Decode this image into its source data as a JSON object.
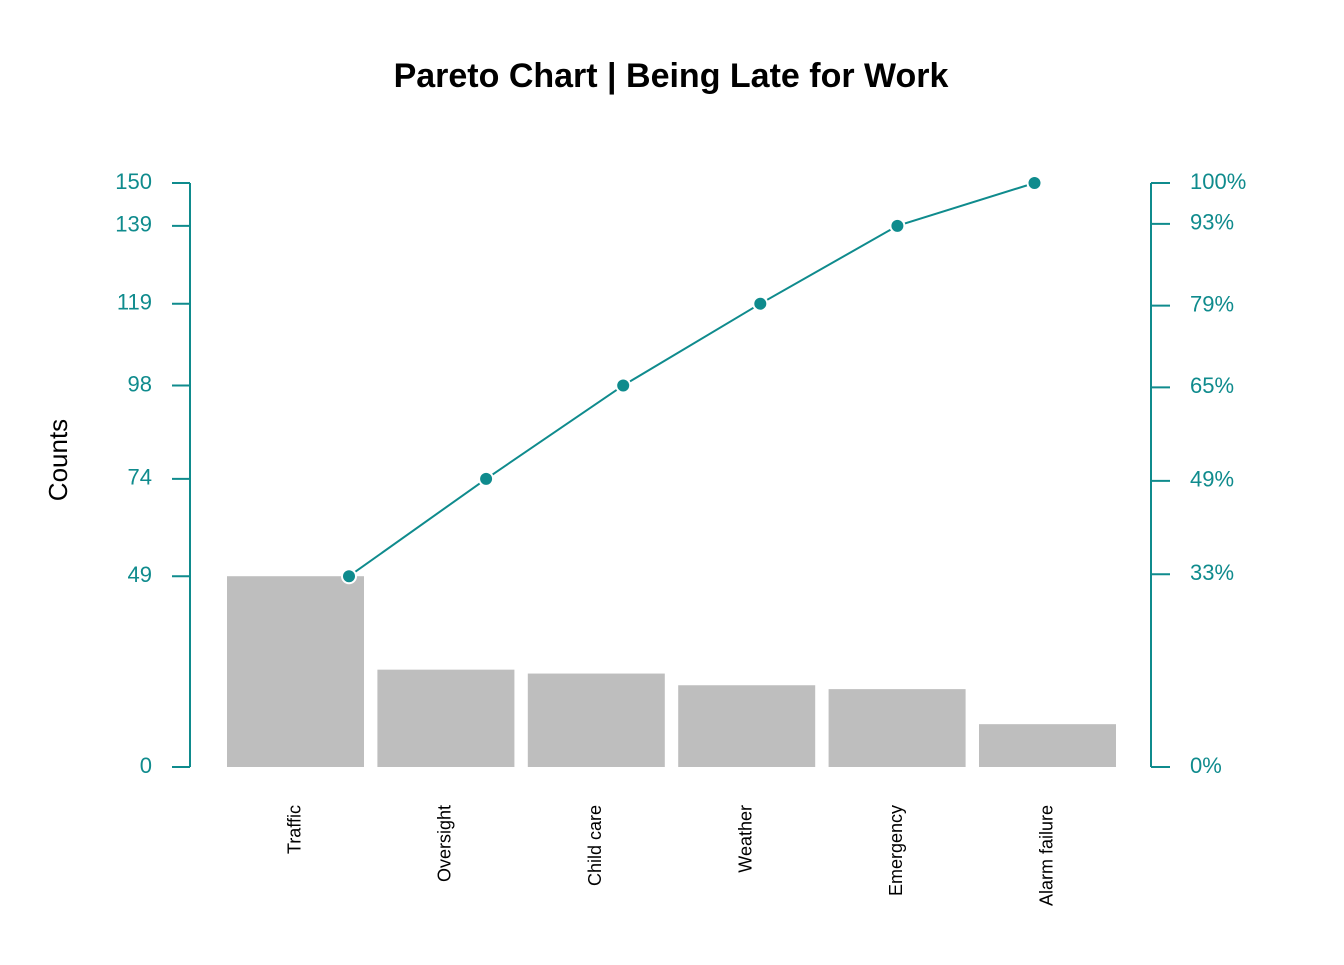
{
  "chart_data": {
    "type": "pareto",
    "title": "Pareto Chart | Being Late for Work",
    "ylabel": "Counts",
    "categories": [
      "Traffic",
      "Oversight",
      "Child care",
      "Weather",
      "Emergency",
      "Alarm failure"
    ],
    "values": [
      49,
      25,
      24,
      21,
      20,
      11
    ],
    "color": "#bebebe",
    "line_values": [
      49,
      74,
      98,
      119,
      139,
      150
    ],
    "line_color": "#0f8b8d",
    "ylim": [
      0,
      150
    ],
    "yticks": [
      0,
      49,
      74,
      98,
      119,
      139,
      150
    ],
    "y2lim": [
      0,
      100
    ],
    "y2ticks": [
      {
        "value": 0,
        "label": "0%"
      },
      {
        "value": 33,
        "label": "33%"
      },
      {
        "value": 49,
        "label": "49%"
      },
      {
        "value": 65,
        "label": "65%"
      },
      {
        "value": 79,
        "label": "79%"
      },
      {
        "value": 93,
        "label": "93%"
      },
      {
        "value": 100,
        "label": "100%"
      }
    ]
  }
}
